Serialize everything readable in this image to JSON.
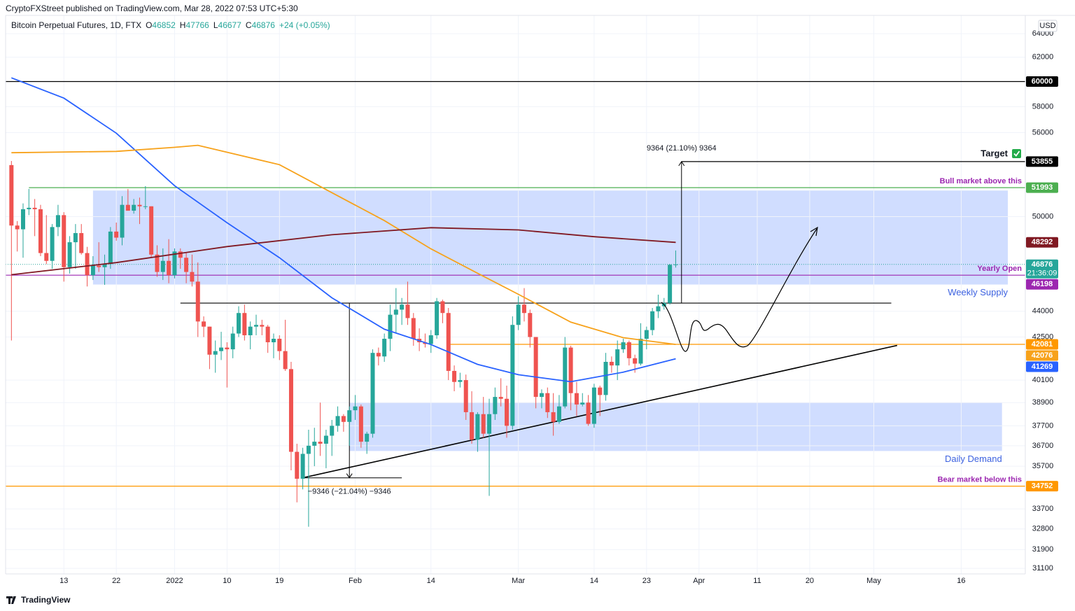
{
  "header": {
    "publisher": "CryptoFXStreet published on TradingView.com, Mar 28, 2022 07:53 UTC+5:30",
    "symbol": "Bitcoin Perpetual Futures, 1D, FTX",
    "ohlc_labels": [
      "O",
      "H",
      "L",
      "C"
    ],
    "change": "+24 (+0.05%)"
  },
  "chart_data": {
    "type": "candlestick",
    "currency": "USD",
    "countdown": "21:36:09",
    "target_label": "Target",
    "up_color": "#26a69a",
    "down_color": "#ef5350",
    "log_scale": true,
    "grid": true,
    "x": [
      0,
      1,
      2,
      3,
      4,
      5,
      6,
      7,
      8,
      9,
      10,
      11,
      12,
      13,
      14,
      15,
      16,
      17,
      18,
      19,
      20,
      21,
      22,
      23,
      24,
      25,
      26,
      27,
      28,
      29,
      30,
      31,
      32,
      33,
      34,
      35,
      36,
      37,
      38,
      39,
      40,
      41,
      42,
      43,
      44,
      45,
      46,
      47,
      48,
      49,
      50,
      51,
      52,
      53,
      54,
      55,
      56,
      57,
      58,
      59,
      60,
      61,
      62,
      63,
      64,
      65,
      66,
      67,
      68,
      69,
      70,
      71,
      72,
      73,
      74,
      75,
      76,
      77,
      78,
      79,
      80,
      81,
      82,
      83,
      84,
      85,
      86,
      87,
      88,
      89,
      90,
      91,
      92,
      93,
      94,
      95,
      96,
      97,
      98,
      99,
      100,
      101,
      102,
      103,
      104,
      105,
      106,
      107,
      108,
      109,
      110,
      111,
      112,
      113,
      114
    ],
    "open": [
      53600,
      49400,
      49150,
      50500,
      50600,
      50500,
      47600,
      47100,
      49300,
      50100,
      46700,
      48300,
      48900,
      47600,
      46200,
      46800,
      46700,
      46900,
      49000,
      48600,
      50800,
      50400,
      50800,
      50700,
      50700,
      47500,
      46400,
      47100,
      46200,
      47700,
      47300,
      46400,
      45800,
      43400,
      43100,
      41500,
      41700,
      41900,
      41800,
      42700,
      43900,
      42600,
      43100,
      43200,
      43100,
      42200,
      42400,
      41700,
      40700,
      36400,
      35100,
      36300,
      36700,
      36900,
      36800,
      37200,
      37700,
      38200,
      37900,
      38500,
      38700,
      36900,
      37300,
      41600,
      41400,
      42400,
      43800,
      44100,
      44400,
      43600,
      42400,
      42200,
      42100,
      42600,
      44600,
      43900,
      40600,
      40000,
      40100,
      38400,
      37000,
      38300,
      37300,
      38300,
      39200,
      39100,
      37700,
      43200,
      44400,
      43900,
      42500,
      39200,
      39400,
      38400,
      37900,
      38700,
      41900,
      39400,
      38800,
      38900,
      37800,
      39700,
      39300,
      41100,
      40900,
      41800,
      42200,
      41300,
      41000,
      42400,
      42900,
      44000,
      44300,
      44500,
      46852
    ],
    "high": [
      53900,
      49700,
      50900,
      51900,
      51200,
      50800,
      50100,
      49500,
      50800,
      50300,
      48700,
      49500,
      49500,
      48000,
      47400,
      48300,
      47500,
      49300,
      49600,
      51400,
      51900,
      51200,
      51300,
      52100,
      50700,
      48100,
      47900,
      48500,
      47900,
      47900,
      47600,
      47500,
      47000,
      43700,
      43100,
      42300,
      42800,
      42200,
      43100,
      44300,
      44400,
      43400,
      43800,
      43500,
      43200,
      42700,
      42600,
      43500,
      41100,
      36800,
      36600,
      37500,
      37600,
      38900,
      37500,
      38000,
      38700,
      38300,
      38700,
      39300,
      38800,
      37400,
      41800,
      41900,
      42700,
      44400,
      45400,
      44800,
      45800,
      43900,
      43000,
      42700,
      42900,
      44800,
      44700,
      44200,
      40900,
      40500,
      40400,
      39500,
      38400,
      39200,
      39100,
      39700,
      40200,
      39800,
      43700,
      44900,
      45400,
      44100,
      42500,
      39600,
      39700,
      39400,
      39300,
      42500,
      42000,
      40000,
      39400,
      39300,
      39900,
      39800,
      41600,
      41400,
      42300,
      42400,
      42300,
      41500,
      43300,
      43100,
      44200,
      45000,
      44800,
      46900,
      47766
    ],
    "low": [
      42300,
      47700,
      47300,
      50100,
      48700,
      47400,
      46900,
      46600,
      48700,
      45800,
      46300,
      46600,
      47500,
      45500,
      45900,
      46400,
      45600,
      46600,
      48400,
      48100,
      50400,
      50200,
      49500,
      50500,
      47300,
      46100,
      45900,
      45700,
      46000,
      46600,
      45700,
      45500,
      42500,
      42500,
      40700,
      40500,
      41200,
      39700,
      41300,
      42500,
      42300,
      41800,
      42600,
      42600,
      41600,
      41300,
      41200,
      40600,
      35500,
      34000,
      34600,
      32900,
      35700,
      36200,
      35600,
      36200,
      37400,
      37400,
      36700,
      38000,
      36600,
      36300,
      37100,
      40900,
      41100,
      41700,
      42700,
      43200,
      43200,
      42000,
      41700,
      41900,
      41600,
      42400,
      43300,
      40100,
      39500,
      39700,
      38000,
      36800,
      36400,
      37100,
      34300,
      38000,
      38700,
      37100,
      37500,
      42900,
      43400,
      41900,
      38600,
      38600,
      38100,
      37200,
      37800,
      38600,
      38500,
      38200,
      38700,
      37700,
      37600,
      38200,
      39000,
      40500,
      40100,
      41600,
      40900,
      40500,
      40900,
      41800,
      42600,
      43600,
      44100,
      44400,
      46677
    ],
    "close": [
      49400,
      49150,
      50500,
      50600,
      50500,
      47600,
      47100,
      49300,
      50100,
      46700,
      48300,
      48900,
      47600,
      46200,
      46800,
      46700,
      46900,
      49000,
      48600,
      50800,
      50400,
      50800,
      50700,
      50700,
      47500,
      46400,
      47100,
      46200,
      47700,
      47300,
      46400,
      45800,
      43400,
      43100,
      41500,
      41700,
      41900,
      41800,
      42700,
      43900,
      42600,
      43100,
      43200,
      43100,
      42200,
      42400,
      41700,
      40700,
      36400,
      35100,
      36300,
      36700,
      36900,
      36800,
      37200,
      37700,
      38200,
      37900,
      38500,
      38700,
      36900,
      37300,
      41600,
      41400,
      42400,
      43800,
      44100,
      44400,
      43600,
      42400,
      42200,
      42100,
      42600,
      44600,
      43900,
      40600,
      40000,
      40100,
      38400,
      37000,
      38300,
      37300,
      38300,
      39200,
      39100,
      37700,
      43200,
      44400,
      43900,
      42500,
      39200,
      39400,
      38400,
      37900,
      38700,
      41900,
      39400,
      38800,
      38900,
      37800,
      39700,
      39300,
      41100,
      40900,
      41800,
      42200,
      41300,
      41000,
      42400,
      42900,
      44000,
      44300,
      44500,
      46852,
      46876
    ],
    "xlim": [
      -1,
      174
    ],
    "xticks": [
      {
        "value": 9,
        "label": "13"
      },
      {
        "value": 18,
        "label": "22"
      },
      {
        "value": 28,
        "label": "2022"
      },
      {
        "value": 37,
        "label": "10"
      },
      {
        "value": 46,
        "label": "19"
      },
      {
        "value": 59,
        "label": "Feb"
      },
      {
        "value": 72,
        "label": "14"
      },
      {
        "value": 87,
        "label": "Mar"
      },
      {
        "value": 100,
        "label": "14"
      },
      {
        "value": 109,
        "label": "23"
      },
      {
        "value": 118,
        "label": "Apr"
      },
      {
        "value": 128,
        "label": "11"
      },
      {
        "value": 137,
        "label": "20"
      },
      {
        "value": 148,
        "label": "May"
      },
      {
        "value": 163,
        "label": "16"
      }
    ],
    "ylim": [
      30870,
      65600
    ],
    "yticks": [
      64000,
      62000,
      58000,
      56000,
      50000,
      44000,
      42500,
      40100,
      38900,
      37700,
      36700,
      35700,
      33700,
      32800,
      31900,
      31100
    ],
    "series": [
      {
        "color": "#2962ff",
        "x": [
          0,
          9,
          18,
          28,
          37,
          46,
          55,
          64,
          72,
          80,
          87,
          96,
          105,
          114
        ],
        "values": [
          60300,
          58670,
          55960,
          52130,
          49590,
          47300,
          44810,
          42950,
          42070,
          40960,
          40390,
          40010,
          40530,
          41269
        ]
      },
      {
        "color": "#f7a21b",
        "x": [
          0,
          18,
          28,
          32,
          46,
          55,
          64,
          72,
          80,
          87,
          96,
          105,
          114
        ],
        "values": [
          54500,
          54600,
          54900,
          55050,
          53630,
          51640,
          49730,
          47870,
          46320,
          45020,
          43360,
          42460,
          42076
        ]
      },
      {
        "color": "#801922",
        "x": [
          0,
          18,
          37,
          55,
          72,
          87,
          100,
          114
        ],
        "values": [
          46230,
          46990,
          48020,
          48790,
          49260,
          49110,
          48660,
          48292
        ]
      }
    ],
    "levels": [
      {
        "value": 60000,
        "color": "#000000",
        "from": -1,
        "to": 174,
        "label_box": true
      },
      {
        "value": 53855,
        "color": "#000000",
        "from": 115,
        "to": 174,
        "label_box": true
      },
      {
        "value": 51993,
        "color": "#4caf50",
        "from": 3,
        "to": 174,
        "label_box": true,
        "text": "Bull market above this",
        "text_color": "#9c27b0"
      },
      {
        "value": 46198,
        "color": "#9c27b0",
        "from": -1,
        "to": 174,
        "label_box": true,
        "text": "Yearly Open",
        "text_color": "#9c27b0"
      },
      {
        "value": 44491,
        "color": "#000000",
        "from": 29,
        "to": 151,
        "label_box": false
      },
      {
        "value": 42081,
        "color": "#ff9800",
        "from": 75,
        "to": 174,
        "label_box": true
      },
      {
        "value": 34752,
        "color": "#ff9800",
        "from": -1,
        "to": 174,
        "label_box": true,
        "text": "Bear market below this",
        "text_color": "#9c27b0"
      }
    ],
    "zones": [
      {
        "label": "Weekly Supply",
        "color": "#2962ff",
        "from": 14,
        "to": 171,
        "low": 45620,
        "high": 51790
      },
      {
        "label": "Daily Demand",
        "color": "#2962ff",
        "from": 58,
        "to": 170,
        "low": 36440,
        "high": 38890
      }
    ],
    "trendline": {
      "color": "#000000",
      "x": [
        50,
        152
      ],
      "values": [
        35145,
        42020
      ]
    },
    "measures": [
      {
        "label": "9364 (21.10%) 9364",
        "x": 115,
        "from": 44491,
        "to": 53855
      },
      {
        "label": "−9346 (−21.04%) −9346",
        "x": 58,
        "from": 44491,
        "to": 35145,
        "base": [
          50,
          67
        ]
      }
    ]
  },
  "footer": {
    "logo": "TradingView"
  }
}
